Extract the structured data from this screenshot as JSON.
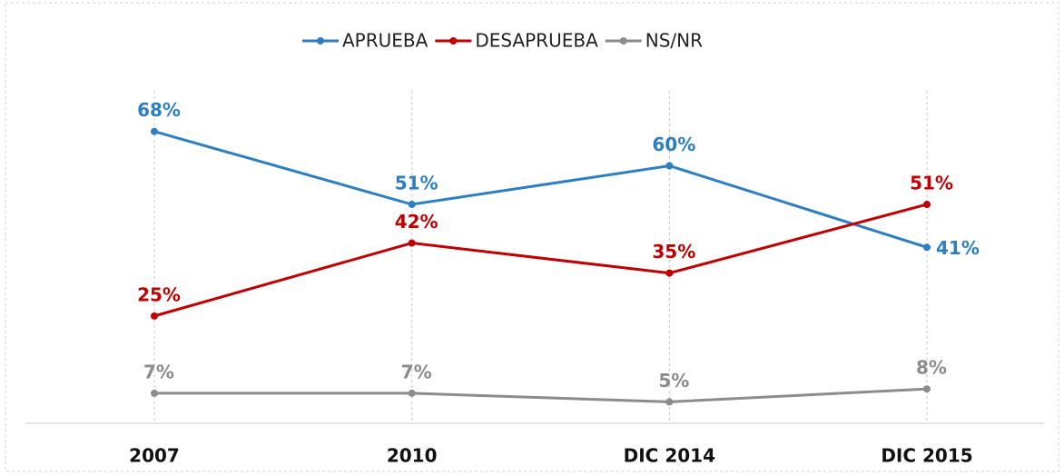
{
  "chart_data": {
    "type": "line",
    "categories": [
      "2007",
      "2010",
      "DIC 2014",
      "DIC 2015"
    ],
    "series": [
      {
        "name": "APRUEBA",
        "color": "#2e7fc1",
        "values": [
          68,
          51,
          60,
          41
        ],
        "value_labels": [
          "68%",
          "51%",
          "60%",
          "41%"
        ]
      },
      {
        "name": "DESAPRUEBA",
        "color": "#c00000",
        "values": [
          25,
          42,
          35,
          51
        ],
        "value_labels": [
          "25%",
          "42%",
          "35%",
          "51%"
        ]
      },
      {
        "name": "NS/NR",
        "color": "#8c8c8c",
        "values": [
          7,
          7,
          5,
          8
        ],
        "value_labels": [
          "7%",
          "7%",
          "5%",
          "8%"
        ]
      }
    ],
    "ylim": [
      0,
      80
    ],
    "legend": "top"
  }
}
